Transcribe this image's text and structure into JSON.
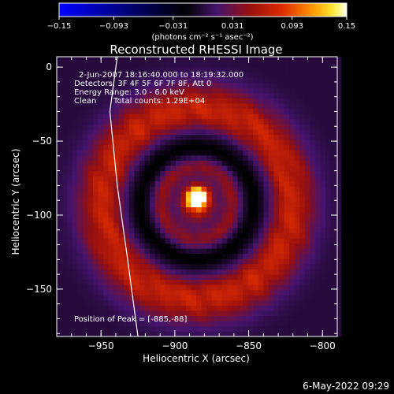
{
  "chart_data": {
    "type": "heatmap",
    "title": "Reconstructed RHESSI Image",
    "xlabel": "Heliocentric X (arcsec)",
    "ylabel": "Heliocentric Y (arcsec)",
    "x_range": [
      -980,
      -790
    ],
    "y_range": [
      -182,
      7
    ],
    "x_ticks": [
      {
        "value": -950,
        "label": "−950"
      },
      {
        "value": -900,
        "label": "−900"
      },
      {
        "value": -850,
        "label": "−850"
      },
      {
        "value": -800,
        "label": "−800"
      }
    ],
    "y_ticks": [
      {
        "value": 0,
        "label": "0"
      },
      {
        "value": -50,
        "label": "−50"
      },
      {
        "value": -100,
        "label": "−100"
      },
      {
        "value": -150,
        "label": "−150"
      }
    ],
    "colorbar": {
      "range": [
        -0.15,
        0.15
      ],
      "ticks": [
        {
          "value": -0.15,
          "label": "−0.15"
        },
        {
          "value": -0.093,
          "label": "−0.093"
        },
        {
          "value": -0.031,
          "label": "−0.031"
        },
        {
          "value": 0.031,
          "label": "0.031"
        },
        {
          "value": 0.093,
          "label": "0.093"
        },
        {
          "value": 0.15,
          "label": "0.15"
        }
      ],
      "unit_label": "(photons cm⁻² s⁻¹ asec⁻²)"
    },
    "info": {
      "time_range": "2-Jun-2007 18:16:40.000 to 18:19:32.000",
      "detectors": "Detectors: 3F 4F 5F 6F 7F 8F, Att 0",
      "energy": "Energy Range: 3.0 - 6.0 keV",
      "method": "Clean",
      "counts": "Total counts: 1.29E+04"
    },
    "peak_text": "Position of Peak = [-885,-88]",
    "peak": {
      "x": -885,
      "y": -88,
      "value": 0.15
    },
    "sources": [
      {
        "x": -885,
        "y": -88,
        "amplitude": 0.19,
        "sigma": 4.5,
        "shape": "gaussian"
      },
      {
        "x": -885,
        "y": -92,
        "amplitude": 0.075,
        "sigma": 9,
        "shape": "gaussian"
      },
      {
        "x": -885,
        "y": -92,
        "amplitude": 0.05,
        "radius": 25,
        "width": 5,
        "shape": "ring"
      },
      {
        "x": -885,
        "y": -92,
        "amplitude": 0.075,
        "radius": 62,
        "width": 13,
        "shape": "ring"
      },
      {
        "x": -885,
        "y": -92,
        "amplitude": -0.035,
        "radius": 42,
        "width": 11,
        "shape": "ring"
      }
    ],
    "limb": [
      [
        -939,
        7
      ],
      [
        -944,
        -30
      ],
      [
        -939,
        -80
      ],
      [
        -932,
        -130
      ],
      [
        -925,
        -182
      ]
    ],
    "timestamp": "6-May-2022 09:29"
  }
}
